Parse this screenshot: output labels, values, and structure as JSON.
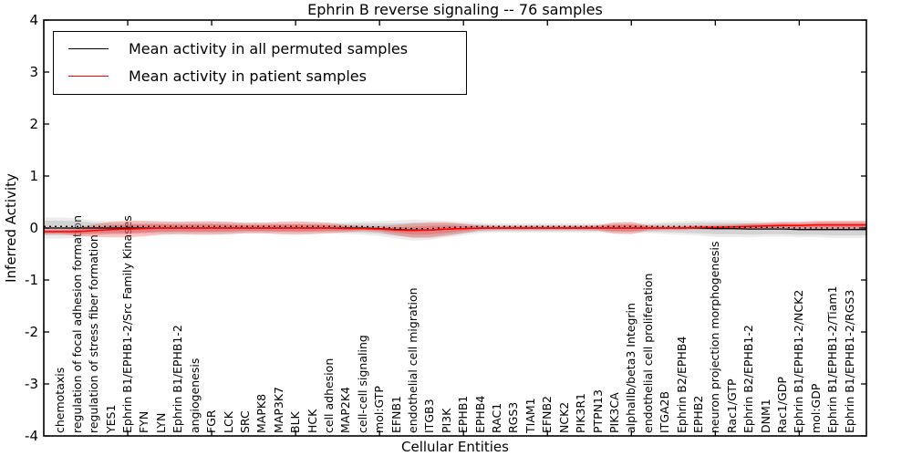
{
  "figure": {
    "title": "Ephrin B reverse signaling -- 76 samples",
    "xlabel": "Cellular Entities",
    "ylabel": "Inferred Activity"
  },
  "legend": {
    "items": [
      {
        "label": "Mean activity in all permuted samples",
        "color": "#000000"
      },
      {
        "label": "Mean activity in patient samples",
        "color": "#ff0000"
      }
    ]
  },
  "chart_data": {
    "type": "line",
    "title": "Ephrin B reverse signaling -- 76 samples",
    "xlabel": "Cellular Entities",
    "ylabel": "Inferred Activity",
    "ylim": [
      -4,
      4
    ],
    "yticks": [
      4,
      3,
      2,
      1,
      0,
      -1,
      -2,
      -3,
      -4
    ],
    "grid": false,
    "legend_position": "upper left",
    "categories": [
      "chemotaxis",
      "regulation of focal adhesion formation",
      "regulation of stress fiber formation",
      "YES1",
      "Ephrin B1/EPHB1-2/Src Family Kinases",
      "FYN",
      "LYN",
      "Ephrin B1/EPHB1-2",
      "angiogenesis",
      "FGR",
      "LCK",
      "SRC",
      "MAPK8",
      "MAP3K7",
      "BLK",
      "HCK",
      "cell adhesion",
      "MAP2K4",
      "cell-cell signaling",
      "mol:GTP",
      "EFNB1",
      "endothelial cell migration",
      "ITGB3",
      "PI3K",
      "EPHB1",
      "EPHB4",
      "RAC1",
      "RGS3",
      "TIAM1",
      "EFNB2",
      "NCK2",
      "PIK3R1",
      "PTPN13",
      "PIK3CA",
      "alphaIIb/beta3 Integrin",
      "endothelial cell proliferation",
      "ITGA2B",
      "Ephrin B2/EPHB4",
      "EPHB2",
      "neuron projection morphogenesis",
      "Rac1/GTP",
      "Ephrin B2/EPHB1-2",
      "DNM1",
      "Rac1/GDP",
      "Ephrin B1/EPHB1-2/NCK2",
      "mol:GDP",
      "Ephrin B1/EPHB1-2/Tiam1",
      "Ephrin B1/EPHB1-2/RGS3"
    ],
    "series": [
      {
        "name": "Mean activity in all permuted samples",
        "color": "#000000",
        "band_color": "#aaaaaa",
        "mean": [
          0,
          0,
          0,
          0,
          0,
          0,
          0,
          0,
          0,
          0,
          0,
          0,
          0,
          0,
          0,
          0,
          0,
          0,
          0,
          -0.01,
          -0.03,
          -0.04,
          -0.04,
          -0.02,
          -0.01,
          0,
          0,
          0,
          0,
          0,
          0,
          0,
          0,
          0,
          0,
          0,
          0,
          0,
          0,
          -0.01,
          -0.01,
          -0.02,
          -0.02,
          -0.02,
          -0.03,
          -0.03,
          -0.03,
          -0.03
        ],
        "band_half_width": [
          0.14,
          0.13,
          0.1,
          0.09,
          0.08,
          0.08,
          0.08,
          0.08,
          0.08,
          0.08,
          0.08,
          0.07,
          0.07,
          0.07,
          0.07,
          0.07,
          0.07,
          0.08,
          0.09,
          0.1,
          0.12,
          0.14,
          0.13,
          0.11,
          0.09,
          0.07,
          0.06,
          0.06,
          0.06,
          0.06,
          0.06,
          0.06,
          0.06,
          0.07,
          0.07,
          0.07,
          0.08,
          0.09,
          0.1,
          0.11,
          0.11,
          0.11,
          0.1,
          0.1,
          0.1,
          0.1,
          0.11,
          0.11
        ]
      },
      {
        "name": "Mean activity in patient samples",
        "color": "#ff0000",
        "band_color": "#f04040",
        "mean": [
          -0.07,
          -0.07,
          -0.05,
          -0.03,
          -0.02,
          -0.01,
          0,
          0,
          0,
          0,
          0,
          0,
          0,
          0,
          0,
          0,
          0,
          -0.01,
          -0.01,
          -0.02,
          -0.04,
          -0.05,
          -0.04,
          -0.02,
          -0.01,
          0,
          0,
          0,
          0,
          0,
          0,
          0,
          0,
          0,
          0,
          0,
          0,
          0,
          0.01,
          0.01,
          0.02,
          0.03,
          0.04,
          0.05,
          0.05,
          0.06,
          0.06,
          0.06
        ],
        "band_half_width": [
          0.05,
          0.08,
          0.12,
          0.15,
          0.16,
          0.15,
          0.13,
          0.12,
          0.13,
          0.13,
          0.12,
          0.1,
          0.1,
          0.12,
          0.13,
          0.12,
          0.1,
          0.07,
          0.05,
          0.06,
          0.1,
          0.14,
          0.15,
          0.13,
          0.09,
          0.05,
          0.04,
          0.04,
          0.04,
          0.04,
          0.04,
          0.04,
          0.05,
          0.11,
          0.12,
          0.05,
          0.04,
          0.04,
          0.04,
          0.05,
          0.05,
          0.06,
          0.06,
          0.07,
          0.07,
          0.08,
          0.08,
          0.08
        ]
      }
    ]
  }
}
